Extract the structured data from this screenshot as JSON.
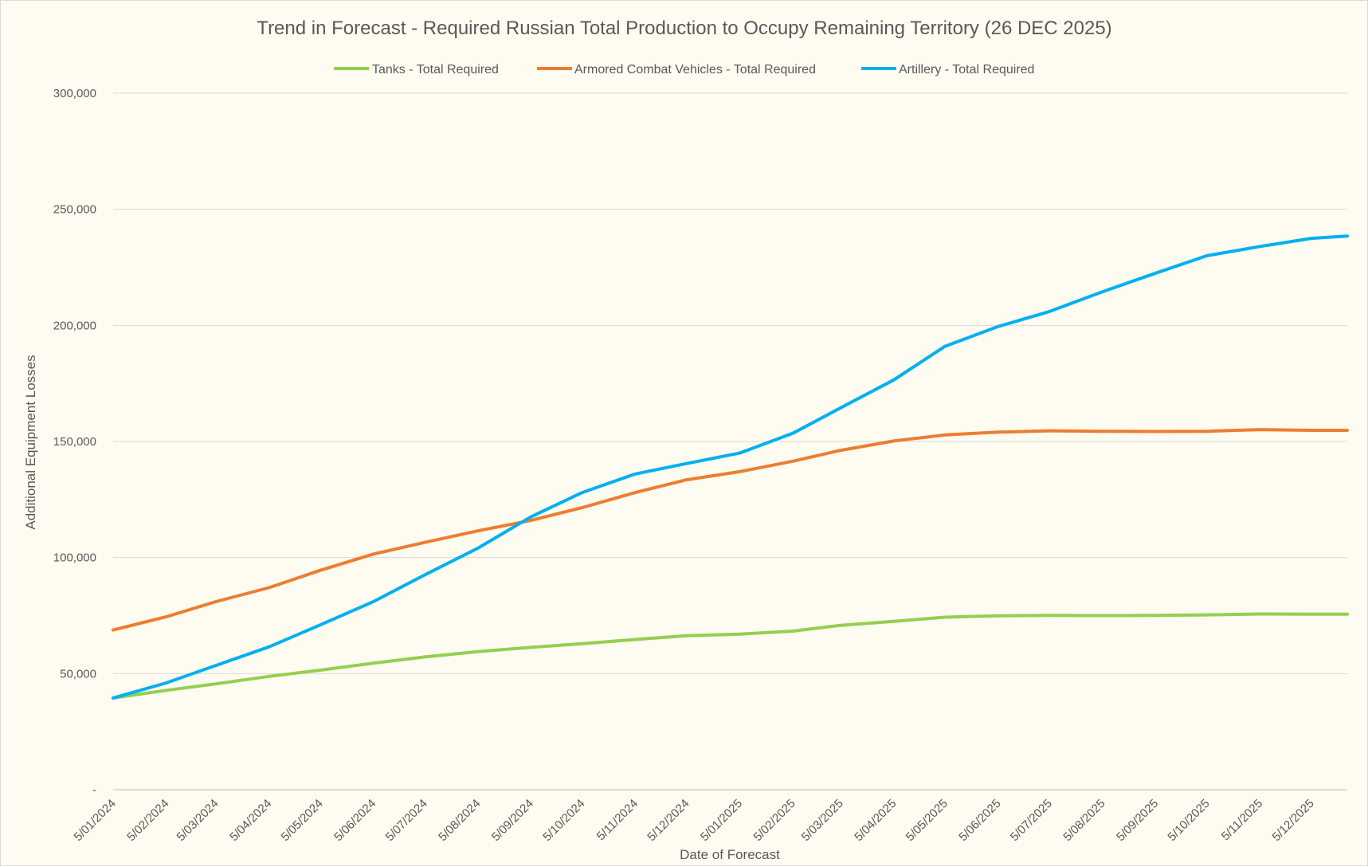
{
  "chart_data": {
    "type": "line",
    "title": "Trend in Forecast - Required Russian Total Production to Occupy Remaining Territory (26 DEC 2025)",
    "xlabel": "Date of Forecast",
    "ylabel": "Additional Equipment Losses",
    "ylim": [
      0,
      300000
    ],
    "yticks": [
      "-",
      "50,000",
      "100,000",
      "150,000",
      "200,000",
      "250,000",
      "300,000"
    ],
    "ytick_values": [
      0,
      50000,
      100000,
      150000,
      200000,
      250000,
      300000
    ],
    "xtick_labels": [
      "5/01/2024",
      "5/02/2024",
      "5/03/2024",
      "5/04/2024",
      "5/05/2024",
      "5/06/2024",
      "5/07/2024",
      "5/08/2024",
      "5/09/2024",
      "5/10/2024",
      "5/11/2024",
      "5/12/2024",
      "5/01/2025",
      "5/02/2025",
      "5/03/2025",
      "5/04/2025",
      "5/05/2025",
      "5/06/2025",
      "5/07/2025",
      "5/08/2025",
      "5/09/2025",
      "5/10/2025",
      "5/11/2025",
      "5/12/2025"
    ],
    "x_end": "26/12/2025",
    "grid": true,
    "legend_position": "top",
    "series": [
      {
        "name": "Tanks - Total Required",
        "color": "#92d050",
        "x": [
          "5/01/2024",
          "5/02/2024",
          "5/03/2024",
          "5/04/2024",
          "5/05/2024",
          "5/06/2024",
          "5/07/2024",
          "5/08/2024",
          "5/09/2024",
          "5/10/2024",
          "5/11/2024",
          "5/12/2024",
          "5/01/2025",
          "5/02/2025",
          "5/03/2025",
          "5/04/2025",
          "5/05/2025",
          "5/06/2025",
          "5/07/2025",
          "5/08/2025",
          "5/09/2025",
          "5/10/2025",
          "5/11/2025",
          "5/12/2025",
          "26/12/2025"
        ],
        "values": [
          39500,
          42800,
          45600,
          48800,
          51500,
          54500,
          57200,
          59500,
          61300,
          62900,
          64700,
          66300,
          67000,
          68300,
          70800,
          72500,
          74300,
          74900,
          75100,
          75000,
          75100,
          75300,
          75700,
          75600,
          75600
        ]
      },
      {
        "name": "Armored Combat Vehicles - Total Required",
        "color": "#ed7d31",
        "x": [
          "5/01/2024",
          "5/02/2024",
          "5/03/2024",
          "5/04/2024",
          "5/05/2024",
          "5/06/2024",
          "5/07/2024",
          "5/08/2024",
          "5/09/2024",
          "5/10/2024",
          "5/11/2024",
          "5/12/2024",
          "5/01/2025",
          "5/02/2025",
          "5/03/2025",
          "5/04/2025",
          "5/05/2025",
          "5/06/2025",
          "5/07/2025",
          "5/08/2025",
          "5/09/2025",
          "5/10/2025",
          "5/11/2025",
          "5/12/2025",
          "26/12/2025"
        ],
        "values": [
          68800,
          74500,
          81000,
          87000,
          94500,
          101500,
          106500,
          111500,
          116000,
          121500,
          128000,
          133500,
          137000,
          141500,
          146200,
          150200,
          152800,
          154000,
          154600,
          154400,
          154300,
          154400,
          155100,
          154800,
          154800
        ]
      },
      {
        "name": "Artillery - Total Required",
        "color": "#00b0f0",
        "x": [
          "5/01/2024",
          "5/02/2024",
          "5/03/2024",
          "5/04/2024",
          "5/05/2024",
          "5/06/2024",
          "5/07/2024",
          "5/08/2024",
          "5/09/2024",
          "5/10/2024",
          "5/11/2024",
          "5/12/2024",
          "5/01/2025",
          "5/02/2025",
          "5/03/2025",
          "5/04/2025",
          "5/05/2025",
          "5/06/2025",
          "5/07/2025",
          "5/08/2025",
          "5/09/2025",
          "5/10/2025",
          "5/11/2025",
          "5/12/2025",
          "26/12/2025"
        ],
        "values": [
          39500,
          46000,
          53500,
          61500,
          71000,
          81000,
          92500,
          104000,
          117500,
          128000,
          136000,
          140500,
          145000,
          153500,
          164500,
          176500,
          191000,
          199500,
          206000,
          214500,
          222500,
          230000,
          234000,
          237500,
          238500
        ]
      }
    ]
  }
}
